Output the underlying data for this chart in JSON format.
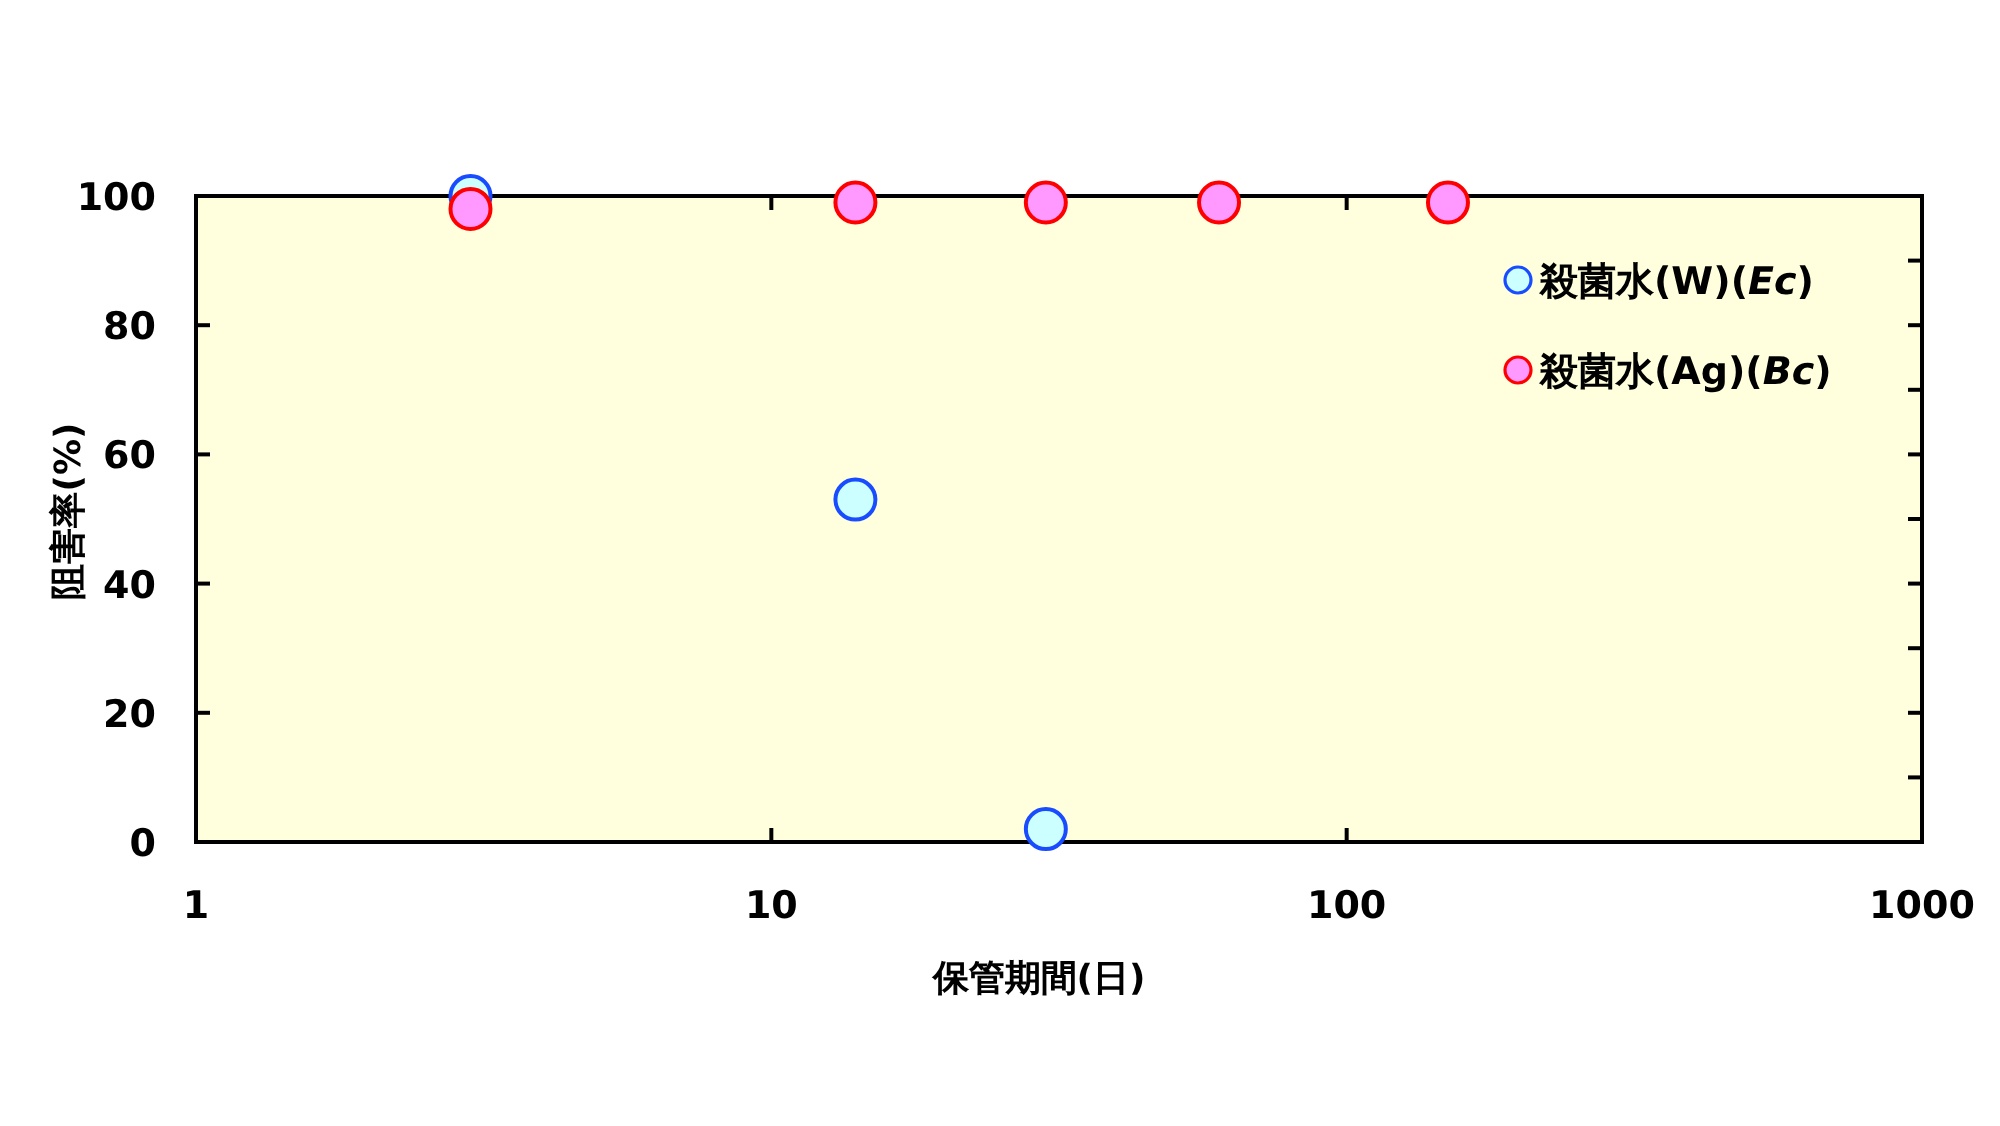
{
  "chart_data": {
    "type": "scatter",
    "xlabel": "保管期間(日)",
    "ylabel": "阻害率(%)",
    "log": "x",
    "marker": "circle",
    "legend": "top right",
    "xlim": [
      1,
      1000
    ],
    "xticks": [
      1,
      10,
      100,
      1000
    ],
    "ylim": [
      0,
      100
    ],
    "yticks": [
      0,
      20,
      40,
      60,
      80,
      100
    ],
    "series": [
      {
        "name": "殺菌水(W)(*Ec*)",
        "color": "#ccffff",
        "x": [
          3,
          14,
          30
        ],
        "values": [
          100,
          53,
          2
        ]
      },
      {
        "name": "殺菌水(Ag)(*Bc*)",
        "color": "#ff99ff",
        "x": [
          3,
          14,
          30,
          60,
          150
        ],
        "values": [
          98,
          99,
          99,
          99,
          99
        ]
      }
    ]
  }
}
